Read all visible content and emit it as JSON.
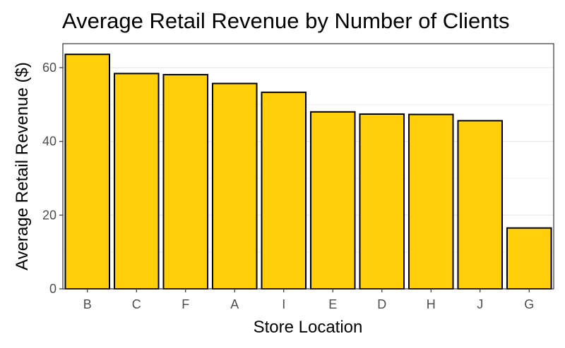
{
  "chart_data": {
    "type": "bar",
    "title": "Average Retail Revenue by Number of Clients",
    "xlabel": "Store Location",
    "ylabel": "Average Retail Revenue ($)",
    "categories": [
      "B",
      "C",
      "F",
      "A",
      "I",
      "E",
      "D",
      "H",
      "J",
      "G"
    ],
    "values": [
      63.6,
      58.4,
      58.1,
      55.7,
      53.3,
      48.0,
      47.4,
      47.3,
      45.6,
      16.5
    ],
    "ylim": [
      0,
      66.5
    ],
    "yticks": [
      0,
      20,
      40,
      60
    ],
    "grid": true,
    "legend": "none",
    "colors": {
      "bar_fill": "#FFD00A",
      "bar_stroke": "#000000",
      "grid": "#EBEBEB",
      "panel_border": "#333333"
    }
  }
}
